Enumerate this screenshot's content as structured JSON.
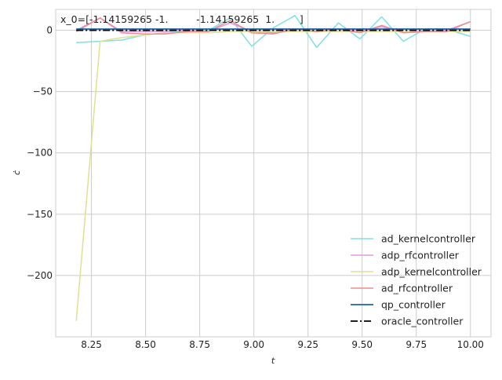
{
  "chart_data": {
    "type": "line",
    "annotation": "x_0=[-1.14159265 -1.         -1.14159265  1.        ]",
    "title": "",
    "xlabel": "t",
    "ylabel": "ċ",
    "xlim": [
      8.085,
      10.095
    ],
    "ylim": [
      -250,
      17
    ],
    "grid": true,
    "legend_position": "lower-right",
    "xticks": [
      8.25,
      8.5,
      8.75,
      9.0,
      9.25,
      9.5,
      9.75,
      10.0
    ],
    "xtick_labels": [
      "8.25",
      "8.50",
      "8.75",
      "9.00",
      "9.25",
      "9.50",
      "9.75",
      "10.00"
    ],
    "yticks": [
      0,
      -50,
      -100,
      -150,
      -200
    ],
    "ytick_labels": [
      "0",
      "−50",
      "−100",
      "−150",
      "−200"
    ],
    "x": [
      8.18,
      8.29,
      8.39,
      8.49,
      8.59,
      8.69,
      8.79,
      8.89,
      8.99,
      9.09,
      9.19,
      9.29,
      9.39,
      9.49,
      9.59,
      9.69,
      9.79,
      9.89,
      10.0
    ],
    "series": [
      {
        "name": "ad_kernelcontroller",
        "color": "#7fdfe8",
        "style": "solid",
        "width": 1.5,
        "values": [
          -10,
          -9,
          -8,
          -4,
          -2,
          -1,
          0,
          10,
          -13,
          2,
          12,
          -14,
          6,
          -7,
          11,
          -9,
          1,
          1,
          -5
        ]
      },
      {
        "name": "adp_rfcontroller",
        "color": "#e398e3",
        "style": "solid",
        "width": 1.5,
        "values": [
          0,
          10,
          -1,
          -1,
          -1,
          0,
          -1,
          6,
          -1,
          -2,
          1,
          -1,
          1,
          -1,
          3,
          -2,
          -1,
          0,
          7
        ]
      },
      {
        "name": "adp_kernelcontroller",
        "color": "#e0e090",
        "style": "solid",
        "width": 1.5,
        "values": [
          -237,
          -9,
          -6,
          -4,
          -2,
          -2,
          -2,
          -1,
          -1,
          -1,
          -1,
          -1,
          -1,
          -1,
          -1,
          -1,
          -1,
          -1,
          -1
        ]
      },
      {
        "name": "ad_rfcontroller",
        "color": "#f08c8c",
        "style": "solid",
        "width": 1.5,
        "values": [
          -1,
          10,
          -2,
          -3,
          -3,
          -1,
          -1,
          8,
          -2,
          -3,
          1,
          -1,
          1,
          -2,
          4,
          -2,
          -1,
          -1,
          7
        ]
      },
      {
        "name": "qp_controller",
        "color": "#1f64a8",
        "style": "solid",
        "width": 1.8,
        "values": [
          1,
          1,
          1,
          1,
          1,
          1,
          1,
          1,
          1,
          1,
          1,
          1,
          1,
          1,
          1,
          1,
          1,
          1,
          1
        ]
      },
      {
        "name": "oracle_controller",
        "color": "#000000",
        "style": "dashdot",
        "width": 1.8,
        "values": [
          0,
          0,
          0,
          0,
          0,
          0,
          0,
          0,
          0,
          0,
          0,
          0,
          0,
          0,
          0,
          0,
          0,
          0,
          0
        ]
      }
    ]
  }
}
